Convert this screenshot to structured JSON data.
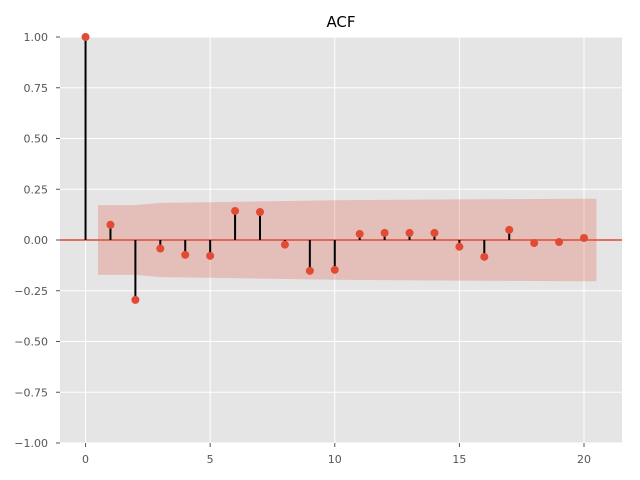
{
  "chart_data": {
    "type": "stem",
    "title": "ACF",
    "xlabel": "",
    "ylabel": "",
    "xlim": [
      -1.025,
      21.525
    ],
    "ylim": [
      -1.0,
      1.0
    ],
    "x_ticks": [
      0,
      5,
      10,
      15,
      20
    ],
    "y_ticks": [
      -1.0,
      -0.75,
      -0.5,
      -0.25,
      0.0,
      0.25,
      0.5,
      0.75,
      1.0
    ],
    "x_tick_labels": [
      "0",
      "5",
      "10",
      "15",
      "20"
    ],
    "y_tick_labels": [
      "−1.00",
      "−0.75",
      "−0.50",
      "−0.25",
      "0.00",
      "0.25",
      "0.50",
      "0.75",
      "1.00"
    ],
    "grid": true,
    "series": [
      {
        "lags": [
          0,
          1,
          2,
          3,
          4,
          5,
          6,
          7,
          8,
          9,
          10,
          11,
          12,
          13,
          14,
          15,
          16,
          17,
          18,
          19,
          20
        ],
        "values": [
          1.0,
          0.075,
          -0.295,
          -0.042,
          -0.073,
          -0.078,
          0.143,
          0.138,
          -0.023,
          -0.152,
          -0.147,
          0.03,
          0.035,
          0.035,
          0.035,
          -0.033,
          -0.083,
          0.05,
          -0.015,
          -0.01,
          0.01
        ]
      }
    ],
    "confidence_band": {
      "x": [
        0.5,
        2,
        3,
        5,
        10,
        15,
        20.5
      ],
      "upper": [
        0.172,
        0.172,
        0.183,
        0.186,
        0.196,
        0.2,
        0.203
      ],
      "lower": [
        -0.172,
        -0.172,
        -0.183,
        -0.186,
        -0.196,
        -0.2,
        -0.203
      ]
    },
    "colors": {
      "background": "#E5E5E5",
      "grid": "#FFFFFF",
      "marker": "#E24A33",
      "stem": "#000000",
      "band": "#E24A33",
      "zero_line": "#E24A33"
    }
  }
}
